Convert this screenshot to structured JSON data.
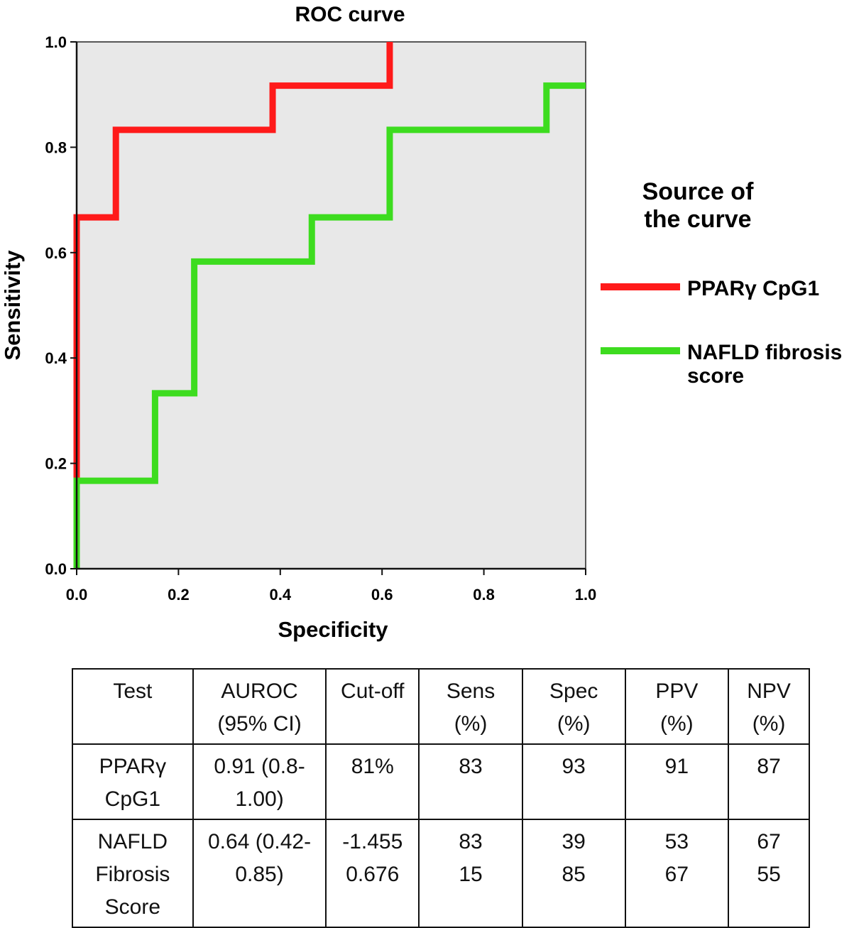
{
  "chart_data": {
    "type": "line",
    "title": "ROC curve",
    "xlabel": "Specificity",
    "ylabel": "Sensitivity",
    "xlim": [
      0,
      1
    ],
    "ylim": [
      0,
      1
    ],
    "xticks": [
      "0.0",
      "0.2",
      "0.4",
      "0.6",
      "0.8",
      "1.0"
    ],
    "yticks": [
      "0.0",
      "0.2",
      "0.4",
      "0.6",
      "0.8",
      "1.0"
    ],
    "grid": false,
    "background": "#e8e8e8",
    "legend": {
      "title_lines": [
        "Source of",
        "the curve"
      ],
      "placement": "right"
    },
    "series": [
      {
        "name": "PPARγ CpG1",
        "label_lines": [
          "PPARγ CpG1"
        ],
        "color": "#ff1a1a",
        "x": [
          0.0,
          0.0,
          0.077,
          0.077,
          0.385,
          0.385,
          0.615,
          0.615
        ],
        "y": [
          0.0,
          0.667,
          0.667,
          0.833,
          0.833,
          0.917,
          0.917,
          1.0
        ]
      },
      {
        "name": "NAFLD fibrosis score",
        "label_lines": [
          "NAFLD fibrosis",
          "score"
        ],
        "color": "#3ddc1f",
        "x": [
          0.0,
          0.0,
          0.154,
          0.154,
          0.231,
          0.231,
          0.462,
          0.462,
          0.615,
          0.615,
          0.923,
          0.923,
          1.0
        ],
        "y": [
          0.0,
          0.167,
          0.167,
          0.333,
          0.333,
          0.583,
          0.583,
          0.667,
          0.667,
          0.833,
          0.833,
          0.917,
          0.917
        ]
      }
    ]
  },
  "table": {
    "headers": [
      [
        "Test"
      ],
      [
        "AUROC",
        "(95% CI)"
      ],
      [
        "Cut-off"
      ],
      [
        "Sens",
        "(%)"
      ],
      [
        "Spec",
        "(%)"
      ],
      [
        "PPV",
        "(%)"
      ],
      [
        "NPV",
        "(%)"
      ]
    ],
    "rows": [
      [
        [
          "PPARγ",
          "CpG1"
        ],
        [
          "0.91 (0.8-",
          "1.00)"
        ],
        [
          "81%"
        ],
        [
          "83"
        ],
        [
          "93"
        ],
        [
          "91"
        ],
        [
          "87"
        ]
      ],
      [
        [
          "NAFLD",
          "Fibrosis",
          "Score"
        ],
        [
          "0.64 (0.42-",
          "0.85)"
        ],
        [
          "-1.455",
          "0.676"
        ],
        [
          "83",
          "15"
        ],
        [
          "39",
          "85"
        ],
        [
          "53",
          "67"
        ],
        [
          "67",
          "55"
        ]
      ]
    ]
  }
}
